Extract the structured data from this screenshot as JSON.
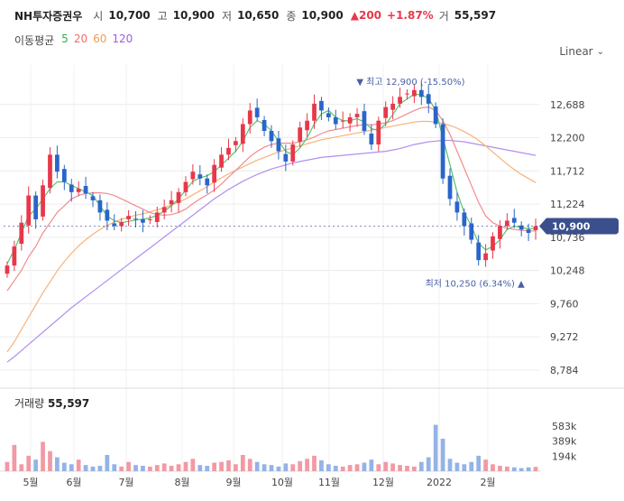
{
  "header": {
    "name": "NH투자증권우",
    "open_label": "시",
    "open": "10,700",
    "high_label": "고",
    "high": "10,900",
    "low_label": "저",
    "low": "10,650",
    "close_label": "종",
    "close": "10,900",
    "change": "▲200",
    "change_pct": "+1.87%",
    "vol_label": "거",
    "volume": "55,597"
  },
  "ma_legend": {
    "label": "이동평균",
    "items": [
      {
        "text": "5",
        "color": "#2eaf4a"
      },
      {
        "text": "20",
        "color": "#f06b6b"
      },
      {
        "text": "60",
        "color": "#f39a4f"
      },
      {
        "text": "120",
        "color": "#9b5de5"
      }
    ]
  },
  "scale": {
    "mode": "Linear"
  },
  "volume_panel": {
    "label": "거래량",
    "value": "55,597"
  },
  "chart_data": {
    "type": "candlestick",
    "x_labels": [
      "5월",
      "6월",
      "7월",
      "8월",
      "9월",
      "10월",
      "11월",
      "12월",
      "2022",
      "2월"
    ],
    "price_ticks": [
      8784,
      9272,
      9760,
      10248,
      10736,
      11224,
      11712,
      12200,
      12688
    ],
    "price_tick_labels": [
      "8,784",
      "9,272",
      "9,760",
      "10,248",
      "10,736",
      "11,224",
      "11,712",
      "12,200",
      "12,688"
    ],
    "ylim": [
      8650,
      13030
    ],
    "volume_ticks": [
      "194k",
      "389k",
      "583k"
    ],
    "volume_tick_values": [
      194000,
      389000,
      583000
    ],
    "current_price": {
      "value": 10900,
      "label": "10,900"
    },
    "max_annotation": {
      "value": 12900,
      "text": "최고 12,900 (-15.50%)"
    },
    "min_annotation": {
      "value": 10250,
      "text": "최저 10,250 (6.34%)"
    },
    "up_color": "#e8374a",
    "down_color": "#2a65c9",
    "close_series": [
      10320,
      10600,
      10950,
      11350,
      11000,
      11500,
      11950,
      11700,
      11550,
      11400,
      11450,
      11380,
      11280,
      11100,
      10980,
      10900,
      10960,
      11050,
      11000,
      10950,
      11000,
      11100,
      11180,
      11280,
      11400,
      11550,
      11700,
      11600,
      11500,
      11800,
      11950,
      12050,
      12150,
      12400,
      12600,
      12500,
      12300,
      12150,
      12000,
      11850,
      12100,
      12350,
      12450,
      12700,
      12600,
      12500,
      12400,
      12450,
      12500,
      12550,
      12300,
      12100,
      12450,
      12650,
      12700,
      12800,
      12850,
      12900,
      12800,
      12700,
      12400,
      11600,
      11300,
      11100,
      10900,
      10700,
      10400,
      10500,
      10750,
      10900,
      10980,
      10950,
      10850,
      10800,
      10900
    ],
    "ma5": [
      10350,
      10550,
      10800,
      11050,
      11150,
      11300,
      11450,
      11550,
      11550,
      11500,
      11450,
      11400,
      11350,
      11200,
      11050,
      10980,
      10950,
      10970,
      10990,
      11000,
      11020,
      11060,
      11120,
      11200,
      11300,
      11430,
      11560,
      11610,
      11640,
      11700,
      11800,
      11900,
      12000,
      12150,
      12350,
      12450,
      12400,
      12300,
      12150,
      12000,
      11950,
      12050,
      12200,
      12400,
      12550,
      12600,
      12500,
      12450,
      12450,
      12480,
      12430,
      12330,
      12310,
      12400,
      12540,
      12700,
      12770,
      12840,
      12830,
      12780,
      12600,
      12200,
      11800,
      11400,
      11100,
      10900,
      10650,
      10550,
      10600,
      10700,
      10850,
      10900,
      10880,
      10860,
      10870
    ],
    "ma20": [
      9950,
      10100,
      10250,
      10450,
      10600,
      10800,
      10950,
      11100,
      11200,
      11300,
      11350,
      11380,
      11390,
      11390,
      11380,
      11350,
      11300,
      11250,
      11200,
      11150,
      11100,
      11070,
      11060,
      11070,
      11100,
      11150,
      11230,
      11300,
      11360,
      11430,
      11520,
      11620,
      11720,
      11820,
      11920,
      12000,
      12060,
      12100,
      12120,
      12120,
      12120,
      12140,
      12170,
      12210,
      12260,
      12300,
      12320,
      12340,
      12360,
      12380,
      12390,
      12390,
      12400,
      12420,
      12450,
      12500,
      12550,
      12600,
      12640,
      12650,
      12600,
      12450,
      12250,
      12000,
      11750,
      11500,
      11250,
      11050,
      10950,
      10900,
      10870,
      10850,
      10840,
      10830,
      10830
    ],
    "ma60": [
      9050,
      9200,
      9380,
      9560,
      9740,
      9920,
      10080,
      10240,
      10380,
      10500,
      10610,
      10700,
      10780,
      10850,
      10910,
      10960,
      11000,
      11030,
      11060,
      11080,
      11110,
      11140,
      11170,
      11210,
      11250,
      11300,
      11360,
      11420,
      11480,
      11550,
      11610,
      11670,
      11720,
      11770,
      11820,
      11870,
      11910,
      11950,
      11990,
      12020,
      12050,
      12080,
      12110,
      12140,
      12170,
      12190,
      12210,
      12230,
      12250,
      12270,
      12290,
      12310,
      12330,
      12350,
      12370,
      12390,
      12410,
      12430,
      12440,
      12440,
      12430,
      12410,
      12380,
      12340,
      12290,
      12230,
      12160,
      12080,
      11990,
      11900,
      11810,
      11730,
      11660,
      11600,
      11540
    ],
    "ma120": [
      8900,
      8980,
      9070,
      9160,
      9250,
      9340,
      9430,
      9520,
      9610,
      9700,
      9780,
      9860,
      9940,
      10020,
      10100,
      10180,
      10260,
      10340,
      10420,
      10500,
      10580,
      10660,
      10740,
      10820,
      10900,
      10980,
      11060,
      11140,
      11220,
      11300,
      11370,
      11440,
      11500,
      11560,
      11610,
      11660,
      11700,
      11740,
      11770,
      11800,
      11830,
      11850,
      11870,
      11890,
      11910,
      11920,
      11930,
      11940,
      11950,
      11960,
      11970,
      11980,
      11990,
      12000,
      12020,
      12040,
      12070,
      12100,
      12120,
      12140,
      12150,
      12160,
      12160,
      12150,
      12140,
      12120,
      12100,
      12080,
      12060,
      12040,
      12020,
      12000,
      11980,
      11960,
      11940
    ],
    "volume_series": [
      120,
      340,
      90,
      200,
      150,
      380,
      260,
      180,
      110,
      90,
      150,
      80,
      60,
      70,
      210,
      90,
      60,
      120,
      80,
      70,
      60,
      80,
      100,
      70,
      90,
      120,
      160,
      80,
      70,
      110,
      120,
      140,
      90,
      210,
      160,
      120,
      90,
      80,
      60,
      100,
      90,
      130,
      160,
      200,
      140,
      90,
      70,
      60,
      80,
      90,
      110,
      150,
      90,
      120,
      100,
      80,
      70,
      60,
      120,
      180,
      600,
      420,
      160,
      110,
      90,
      120,
      200,
      150,
      90,
      70,
      60,
      50,
      40,
      50,
      56
    ]
  }
}
